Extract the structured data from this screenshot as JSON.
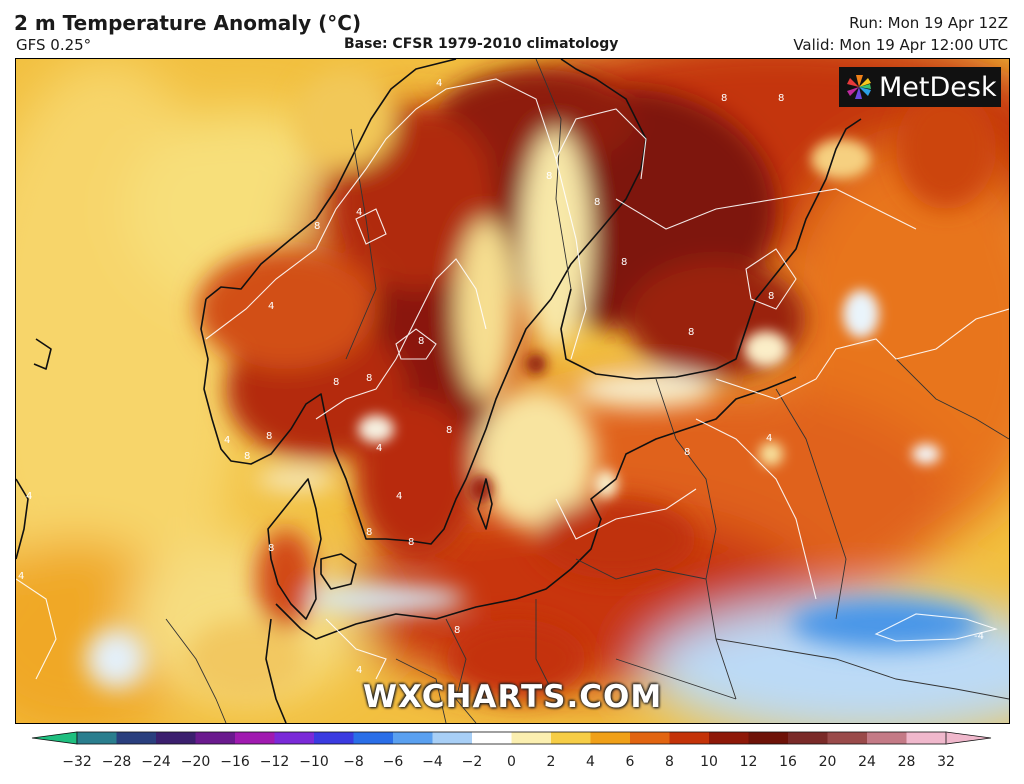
{
  "header": {
    "title": "2 m Temperature Anomaly (°C)",
    "model": "GFS 0.25°",
    "base": "Base: CFSR 1979-2010 climatology",
    "run": "Run: Mon 19 Apr 12Z",
    "valid": "Valid: Mon 19 Apr 12:00 UTC"
  },
  "logo": {
    "text": "MetDesk",
    "icon": "metdesk-pinwheel-icon"
  },
  "watermark": "WXCHARTS.COM",
  "colorbar": {
    "ticks": [
      "−32",
      "−28",
      "−24",
      "−20",
      "−16",
      "−12",
      "−10",
      "−8",
      "−6",
      "−4",
      "−2",
      "0",
      "2",
      "4",
      "6",
      "8",
      "10",
      "12",
      "16",
      "20",
      "24",
      "28",
      "32"
    ],
    "stops": [
      "#1fbf7f",
      "#2a7e8e",
      "#2a3f7e",
      "#3b1f6e",
      "#6a1a8e",
      "#a01ab0",
      "#7a2ad8",
      "#3a3ae0",
      "#2a6ee8",
      "#5aa0f0",
      "#a8cff6",
      "#ffffff",
      "#fbefb0",
      "#f6cd46",
      "#f0a018",
      "#e26410",
      "#c43208",
      "#8e1808",
      "#6e1208",
      "#7a2a28",
      "#9a4a4a",
      "#c47a86",
      "#f0b8cc"
    ]
  },
  "contour_labels": [
    "4",
    "8",
    "-4"
  ]
}
